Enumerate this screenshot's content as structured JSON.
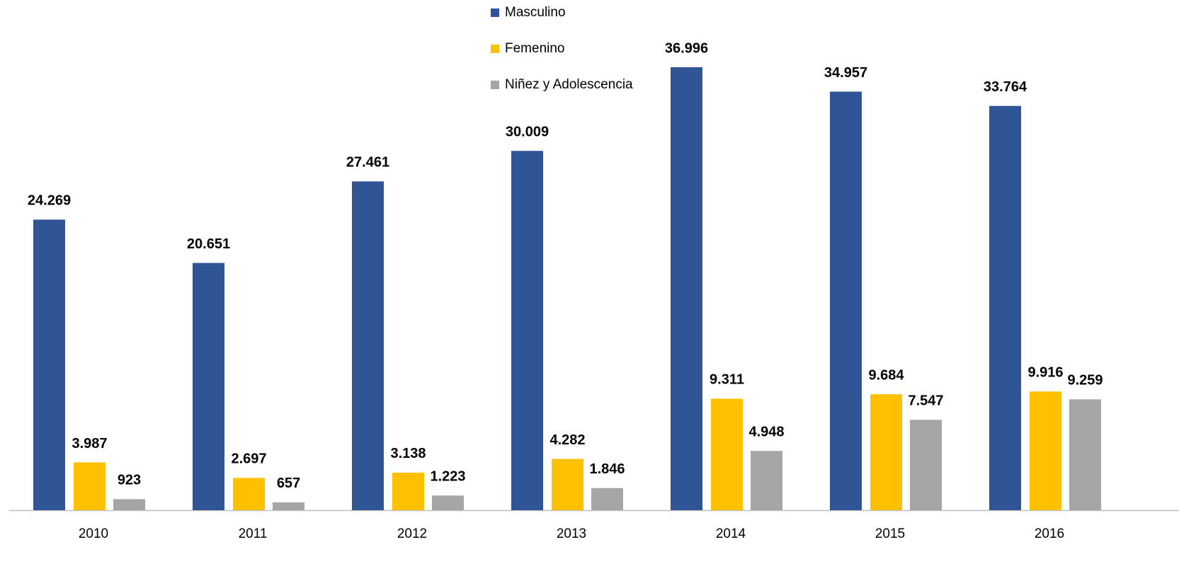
{
  "chart_data": {
    "type": "bar",
    "categories": [
      "2010",
      "2011",
      "2012",
      "2013",
      "2014",
      "2015",
      "2016"
    ],
    "series": [
      {
        "name": "Masculino",
        "color": "#2f5597",
        "values": [
          24269,
          20651,
          27461,
          30009,
          36996,
          34957,
          33764
        ],
        "value_labels": [
          "24.269",
          "20.651",
          "27.461",
          "30.009",
          "36.996",
          "34.957",
          "33.764"
        ]
      },
      {
        "name": "Femenino",
        "color": "#ffc000",
        "values": [
          3987,
          2697,
          3138,
          4282,
          9311,
          9684,
          9916
        ],
        "value_labels": [
          "3.987",
          "2.697",
          "3.138",
          "4.282",
          "9.311",
          "9.684",
          "9.916"
        ]
      },
      {
        "name": "Niñez y Adolescencia",
        "color": "#a5a5a5",
        "values": [
          923,
          657,
          1223,
          1846,
          4948,
          7547,
          9259
        ],
        "value_labels": [
          "923",
          "657",
          "1.223",
          "1.846",
          "4.948",
          "7.547",
          "9.259"
        ]
      }
    ],
    "legend": "top"
  }
}
